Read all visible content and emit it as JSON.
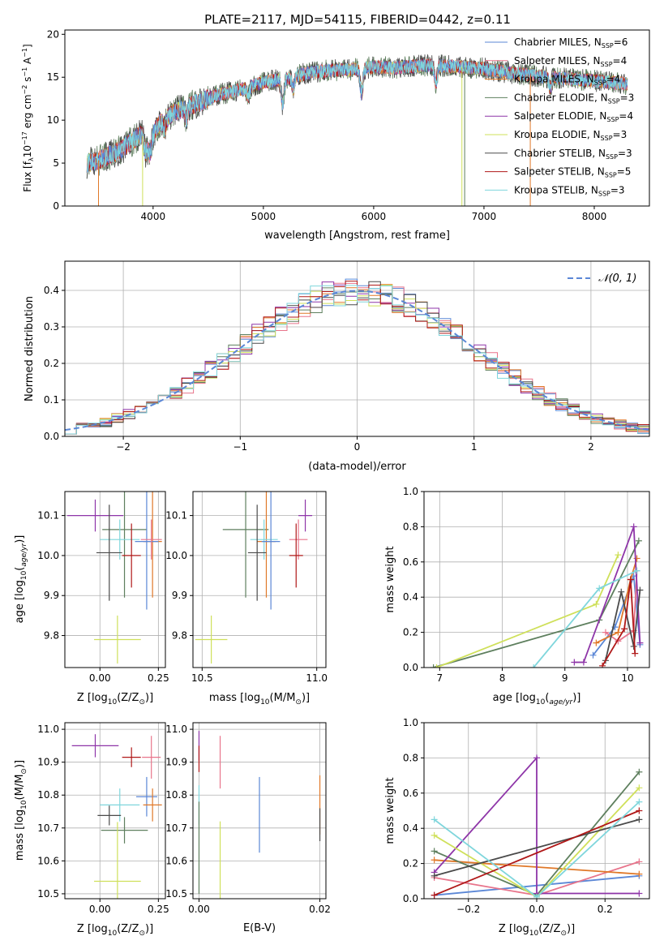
{
  "figure": {
    "title": "PLATE=2117, MJD=54115, FIBERID=0442, z=0.11"
  },
  "series": [
    {
      "key": "c_miles",
      "label": "Chabrier MILES, N",
      "sub": "SSP",
      "suffix": "=6",
      "color": "#5b87d6"
    },
    {
      "key": "s_miles",
      "label": "Salpeter MILES, N",
      "sub": "SSP",
      "suffix": "=4",
      "color": "#e8748b"
    },
    {
      "key": "k_miles",
      "label": "Kroupa MILES, N",
      "sub": "SSP",
      "suffix": "=4",
      "color": "#e07828"
    },
    {
      "key": "c_elodie",
      "label": "Chabrier ELODIE, N",
      "sub": "SSP",
      "suffix": "=3",
      "color": "#5e7f5e"
    },
    {
      "key": "s_elodie",
      "label": "Salpeter ELODIE, N",
      "sub": "SSP",
      "suffix": "=4",
      "color": "#8e35a8"
    },
    {
      "key": "k_elodie",
      "label": "Kroupa ELODIE, N",
      "sub": "SSP",
      "suffix": "=3",
      "color": "#cfe05a"
    },
    {
      "key": "c_stelib",
      "label": "Chabrier STELIB, N",
      "sub": "SSP",
      "suffix": "=3",
      "color": "#4a4a4a"
    },
    {
      "key": "s_stelib",
      "label": "Salpeter STELIB, N",
      "sub": "SSP",
      "suffix": "=5",
      "color": "#b01818"
    },
    {
      "key": "k_stelib",
      "label": "Kroupa STELIB, N",
      "sub": "SSP",
      "suffix": "=3",
      "color": "#7fd6dc"
    }
  ],
  "chart_data": [
    {
      "id": "spectrum",
      "type": "line",
      "xlabel": "wavelength [Angstrom, rest frame]",
      "ylabel_parts": [
        "Flux [f",
        "λ",
        "10",
        "−17",
        " erg cm",
        "−2",
        " s",
        "−1",
        " A",
        "−1",
        "]"
      ],
      "xlim": [
        3200,
        8500
      ],
      "ylim": [
        0,
        20.5
      ],
      "xticks": [
        4000,
        5000,
        6000,
        7000,
        8000
      ],
      "yticks": [
        0,
        5,
        10,
        15,
        20
      ],
      "grid": false,
      "legend": "right",
      "x_range_data": [
        3400,
        8300
      ],
      "anchors": [
        [
          3400,
          5.0
        ],
        [
          3500,
          5.3
        ],
        [
          3600,
          5.9
        ],
        [
          3700,
          6.5
        ],
        [
          3800,
          7.5
        ],
        [
          3900,
          8.4
        ],
        [
          3950,
          7.0
        ],
        [
          4050,
          9.5
        ],
        [
          4200,
          11.0
        ],
        [
          4400,
          12.0
        ],
        [
          4600,
          13.0
        ],
        [
          4800,
          13.6
        ],
        [
          5000,
          14.4
        ],
        [
          5200,
          14.8
        ],
        [
          5400,
          15.5
        ],
        [
          5600,
          15.8
        ],
        [
          5800,
          15.9
        ],
        [
          6000,
          16.2
        ],
        [
          6200,
          16.1
        ],
        [
          6500,
          16.4
        ],
        [
          6800,
          16.2
        ],
        [
          7000,
          16.0
        ],
        [
          7300,
          15.4
        ],
        [
          7600,
          15.0
        ],
        [
          8000,
          14.6
        ],
        [
          8300,
          14.2
        ]
      ],
      "dips": [
        [
          3934,
          6.2
        ],
        [
          3969,
          6.0
        ],
        [
          4102,
          9.0
        ],
        [
          4300,
          10.2
        ],
        [
          4861,
          12.6
        ],
        [
          5175,
          11.8
        ],
        [
          5270,
          13.6
        ],
        [
          5890,
          13.0
        ],
        [
          6563,
          14.2
        ],
        [
          7600,
          13.8
        ]
      ],
      "spikes": [
        {
          "series": "k_miles",
          "x": 3505,
          "to": 0
        },
        {
          "series": "k_elodie",
          "x": 3905,
          "to": 0
        },
        {
          "series": "k_elodie",
          "x": 6800,
          "to": 0
        },
        {
          "series": "c_elodie",
          "x": 6825,
          "to": 0
        },
        {
          "series": "k_miles",
          "x": 7420,
          "to": 0
        }
      ]
    },
    {
      "id": "residuals",
      "type": "histogram",
      "xlabel": "(data-model)/error",
      "ylabel": "Normed distribution",
      "xlim": [
        -2.5,
        2.5
      ],
      "ylim": [
        0,
        0.48
      ],
      "xticks": [
        -2,
        -1,
        0,
        1,
        2
      ],
      "yticks": [
        0.0,
        0.1,
        0.2,
        0.3,
        0.4
      ],
      "bin_width": 0.1,
      "grid": true,
      "legend": "top-right",
      "reference_label": "𝒩(0, 1)",
      "reference_color": "#5b87d6"
    },
    {
      "id": "age_vs_Z",
      "type": "scatter",
      "xlabel_parts": [
        "Z [log",
        "10",
        "(Z/Z",
        "⊙",
        ")]"
      ],
      "ylabel_parts": [
        "age  [log",
        "10",
        "(",
        "age/yr",
        ")]"
      ],
      "xlim": [
        -0.15,
        0.28
      ],
      "ylim": [
        9.72,
        10.16
      ],
      "xticks": [
        0.0,
        0.25
      ],
      "yticks": [
        9.8,
        9.9,
        10.0,
        10.1
      ],
      "grid": true,
      "points": [
        {
          "series": "s_elodie",
          "x": -0.02,
          "xerr": 0.12,
          "y": 10.1,
          "yerr": 0.04
        },
        {
          "series": "c_elodie",
          "x": 0.105,
          "xerr": 0.095,
          "y": 10.065,
          "yerr": 0.17
        },
        {
          "series": "k_miles",
          "x": 0.225,
          "xerr": 0.04,
          "y": 10.035,
          "yerr": 0.14
        },
        {
          "series": "k_stelib",
          "x": 0.085,
          "xerr": 0.085,
          "y": 10.04,
          "yerr": 0.05
        },
        {
          "series": "c_miles",
          "x": 0.2,
          "xerr": 0.05,
          "y": 10.035,
          "yerr": 0.17
        },
        {
          "series": "s_miles",
          "x": 0.22,
          "xerr": 0.045,
          "y": 10.04,
          "yerr": 0.05
        },
        {
          "series": "c_stelib",
          "x": 0.04,
          "xerr": 0.055,
          "y": 10.007,
          "yerr": 0.12
        },
        {
          "series": "s_stelib",
          "x": 0.135,
          "xerr": 0.04,
          "y": 10.0,
          "yerr": 0.08
        },
        {
          "series": "k_elodie",
          "x": 0.075,
          "xerr": 0.1,
          "y": 9.79,
          "yerr": 0.06
        }
      ]
    },
    {
      "id": "age_vs_mass",
      "type": "scatter",
      "xlabel_parts": [
        "mass [log",
        "10",
        "(M/M",
        "⊙",
        ")]"
      ],
      "ylabel_parts": [],
      "xlim": [
        10.46,
        11.04
      ],
      "ylim": [
        9.72,
        10.16
      ],
      "xticks": [
        10.5,
        11.0
      ],
      "yticks": [
        9.8,
        9.9,
        10.0,
        10.1
      ],
      "grid": true,
      "points": [
        {
          "series": "s_elodie",
          "x": 10.95,
          "xerr": 0.03,
          "y": 10.1,
          "yerr": 0.04
        },
        {
          "series": "c_elodie",
          "x": 10.69,
          "xerr": 0.1,
          "y": 10.065,
          "yerr": 0.17
        },
        {
          "series": "k_miles",
          "x": 10.78,
          "xerr": 0.04,
          "y": 10.035,
          "yerr": 0.14
        },
        {
          "series": "k_stelib",
          "x": 10.77,
          "xerr": 0.06,
          "y": 10.04,
          "yerr": 0.05
        },
        {
          "series": "c_miles",
          "x": 10.8,
          "xerr": 0.04,
          "y": 10.035,
          "yerr": 0.17
        },
        {
          "series": "s_miles",
          "x": 10.92,
          "xerr": 0.04,
          "y": 10.04,
          "yerr": 0.05
        },
        {
          "series": "c_stelib",
          "x": 10.74,
          "xerr": 0.04,
          "y": 10.007,
          "yerr": 0.12
        },
        {
          "series": "s_stelib",
          "x": 10.91,
          "xerr": 0.03,
          "y": 10.0,
          "yerr": 0.08
        },
        {
          "series": "k_elodie",
          "x": 10.54,
          "xerr": 0.07,
          "y": 9.79,
          "yerr": 0.06
        }
      ]
    },
    {
      "id": "weight_vs_age",
      "type": "line",
      "xlabel_parts": [
        "age  [log",
        "10",
        "(",
        "age/yr",
        ")]"
      ],
      "ylabel": "mass weight",
      "xlim": [
        6.75,
        10.35
      ],
      "ylim": [
        0,
        1.0
      ],
      "xticks": [
        7,
        8,
        9,
        10
      ],
      "yticks": [
        0.0,
        0.2,
        0.4,
        0.6,
        0.8,
        1.0
      ],
      "grid": true,
      "lines": [
        {
          "series": "c_miles",
          "points": [
            [
              9.45,
              0.07
            ],
            [
              9.8,
              0.23
            ],
            [
              10.1,
              0.52
            ],
            [
              10.2,
              0.13
            ]
          ]
        },
        {
          "series": "s_miles",
          "points": [
            [
              9.65,
              0.2
            ],
            [
              9.85,
              0.15
            ],
            [
              10.1,
              0.21
            ],
            [
              10.15,
              0.55
            ]
          ]
        },
        {
          "series": "k_miles",
          "points": [
            [
              9.5,
              0.14
            ],
            [
              9.85,
              0.2
            ],
            [
              10.05,
              0.5
            ],
            [
              10.15,
              0.62
            ]
          ]
        },
        {
          "series": "c_elodie",
          "points": [
            [
              6.9,
              0.0
            ],
            [
              9.55,
              0.27
            ],
            [
              10.18,
              0.72
            ]
          ]
        },
        {
          "series": "s_elodie",
          "points": [
            [
              9.15,
              0.03
            ],
            [
              9.3,
              0.03
            ],
            [
              10.1,
              0.8
            ],
            [
              10.2,
              0.14
            ]
          ]
        },
        {
          "series": "k_elodie",
          "points": [
            [
              6.95,
              0.0
            ],
            [
              9.5,
              0.36
            ],
            [
              9.85,
              0.64
            ]
          ]
        },
        {
          "series": "c_stelib",
          "points": [
            [
              9.65,
              0.04
            ],
            [
              9.9,
              0.43
            ],
            [
              10.1,
              0.12
            ],
            [
              10.2,
              0.44
            ]
          ]
        },
        {
          "series": "s_stelib",
          "points": [
            [
              9.6,
              0.01
            ],
            [
              9.95,
              0.22
            ],
            [
              10.05,
              0.5
            ],
            [
              10.12,
              0.08
            ]
          ]
        },
        {
          "series": "k_stelib",
          "points": [
            [
              8.5,
              0.0
            ],
            [
              9.55,
              0.45
            ],
            [
              10.15,
              0.55
            ]
          ]
        }
      ]
    },
    {
      "id": "mass_vs_Z",
      "type": "scatter",
      "xlabel_parts": [
        "Z [log",
        "10",
        "(Z/Z",
        "⊙",
        ")]"
      ],
      "ylabel_parts": [
        "mass [log",
        "10",
        "(M/M",
        "⊙",
        ")]"
      ],
      "xlim": [
        -0.15,
        0.28
      ],
      "ylim": [
        10.485,
        11.02
      ],
      "xticks": [
        0.0,
        0.25
      ],
      "yticks": [
        10.5,
        10.6,
        10.7,
        10.8,
        10.9,
        11.0
      ],
      "grid": true,
      "points": [
        {
          "series": "s_elodie",
          "x": -0.02,
          "xerr": 0.1,
          "y": 10.95,
          "yerr": 0.035
        },
        {
          "series": "s_stelib",
          "x": 0.135,
          "xerr": 0.04,
          "y": 10.915,
          "yerr": 0.03
        },
        {
          "series": "s_miles",
          "x": 0.22,
          "xerr": 0.04,
          "y": 10.915,
          "yerr": 0.065
        },
        {
          "series": "c_miles",
          "x": 0.2,
          "xerr": 0.045,
          "y": 10.795,
          "yerr": 0.06
        },
        {
          "series": "k_miles",
          "x": 0.225,
          "xerr": 0.04,
          "y": 10.77,
          "yerr": 0.05
        },
        {
          "series": "k_stelib",
          "x": 0.085,
          "xerr": 0.085,
          "y": 10.77,
          "yerr": 0.05
        },
        {
          "series": "c_stelib",
          "x": 0.04,
          "xerr": 0.05,
          "y": 10.738,
          "yerr": 0.03
        },
        {
          "series": "c_elodie",
          "x": 0.105,
          "xerr": 0.1,
          "y": 10.693,
          "yerr": 0.04
        },
        {
          "series": "k_elodie",
          "x": 0.075,
          "xerr": 0.1,
          "y": 10.538,
          "yerr": 0.18
        }
      ]
    },
    {
      "id": "mass_vs_ebv",
      "type": "scatter",
      "xlabel": "E(B-V)",
      "ylabel_parts": [],
      "xlim": [
        -0.001,
        0.021
      ],
      "ylim": [
        10.485,
        11.02
      ],
      "xticks": [
        0.0,
        0.02
      ],
      "yticks": [
        10.5,
        10.6,
        10.7,
        10.8,
        10.9,
        11.0
      ],
      "grid": true,
      "points": [
        {
          "series": "s_elodie",
          "x": 0.0,
          "xerr": 0,
          "y": 10.95,
          "yerr": 0.045
        },
        {
          "series": "s_stelib",
          "x": 0.0,
          "xerr": 0,
          "y": 10.91,
          "yerr": 0.04
        },
        {
          "series": "s_miles",
          "x": 0.0035,
          "xerr": 0,
          "y": 10.9,
          "yerr": 0.08
        },
        {
          "series": "c_miles",
          "x": 0.01,
          "xerr": 0,
          "y": 10.74,
          "yerr": 0.115
        },
        {
          "series": "k_miles",
          "x": 0.02,
          "xerr": 0,
          "y": 10.77,
          "yerr": 0.09
        },
        {
          "series": "k_stelib",
          "x": 0.0,
          "xerr": 0,
          "y": 10.77,
          "yerr": 0.06
        },
        {
          "series": "c_stelib",
          "x": 0.02,
          "xerr": 0,
          "y": 10.71,
          "yerr": 0.05
        },
        {
          "series": "c_elodie",
          "x": 0.0,
          "xerr": 0,
          "y": 10.64,
          "yerr": 0.14
        },
        {
          "series": "k_elodie",
          "x": 0.0035,
          "xerr": 0,
          "y": 10.6,
          "yerr": 0.12
        }
      ]
    },
    {
      "id": "weight_vs_Z",
      "type": "line",
      "xlabel_parts": [
        "Z [log",
        "10",
        "(Z/Z",
        "⊙",
        ")]"
      ],
      "ylabel": "mass weight",
      "xlim": [
        -0.33,
        0.33
      ],
      "ylim": [
        0,
        1.0
      ],
      "xticks": [
        -0.2,
        0.0,
        0.2
      ],
      "yticks": [
        0.0,
        0.2,
        0.4,
        0.6,
        0.8,
        1.0
      ],
      "grid": true,
      "lines": [
        {
          "series": "c_miles",
          "points": [
            [
              -0.3,
              0.02
            ],
            [
              0.3,
              0.13
            ]
          ]
        },
        {
          "series": "s_miles",
          "points": [
            [
              -0.3,
              0.12
            ],
            [
              0.0,
              0.02
            ],
            [
              0.3,
              0.21
            ]
          ]
        },
        {
          "series": "k_miles",
          "points": [
            [
              -0.3,
              0.22
            ],
            [
              0.3,
              0.14
            ]
          ]
        },
        {
          "series": "c_elodie",
          "points": [
            [
              -0.3,
              0.27
            ],
            [
              0.0,
              0.02
            ],
            [
              0.3,
              0.72
            ]
          ]
        },
        {
          "series": "s_elodie",
          "points": [
            [
              -0.3,
              0.15
            ],
            [
              0.0,
              0.8
            ],
            [
              0.0,
              0.03
            ],
            [
              0.3,
              0.03
            ]
          ]
        },
        {
          "series": "k_elodie",
          "points": [
            [
              -0.3,
              0.36
            ],
            [
              0.0,
              0.01
            ],
            [
              0.3,
              0.63
            ]
          ]
        },
        {
          "series": "c_stelib",
          "points": [
            [
              -0.3,
              0.13
            ],
            [
              0.3,
              0.45
            ]
          ]
        },
        {
          "series": "s_stelib",
          "points": [
            [
              -0.3,
              0.02
            ],
            [
              0.3,
              0.5
            ]
          ]
        },
        {
          "series": "k_stelib",
          "points": [
            [
              -0.3,
              0.45
            ],
            [
              0.0,
              0.01
            ],
            [
              0.3,
              0.55
            ]
          ]
        }
      ]
    }
  ]
}
